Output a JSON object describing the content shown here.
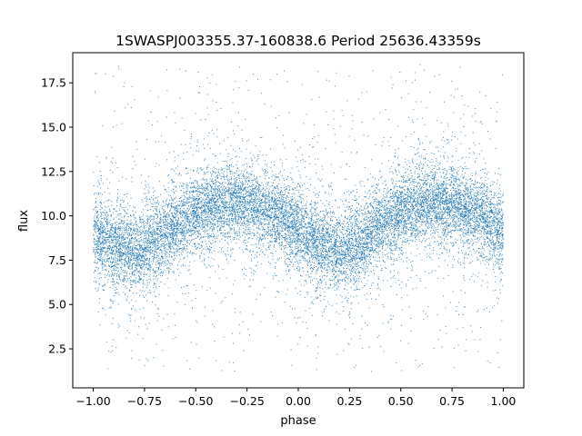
{
  "chart_data": {
    "type": "scatter",
    "title": "1SWASPJ003355.37-160838.6 Period 25636.43359s",
    "xlabel": "phase",
    "ylabel": "flux",
    "xlim": [
      -1.1,
      1.1
    ],
    "ylim": [
      0.3,
      19.2
    ],
    "xticks": [
      -1.0,
      -0.75,
      -0.5,
      -0.25,
      0.0,
      0.25,
      0.5,
      0.75,
      1.0
    ],
    "xtick_labels": [
      "−1.00",
      "−0.75",
      "−0.50",
      "−0.25",
      "0.00",
      "0.25",
      "0.50",
      "0.75",
      "1.00"
    ],
    "yticks": [
      2.5,
      5.0,
      7.5,
      10.0,
      12.5,
      15.0,
      17.5
    ],
    "ytick_labels": [
      "2.5",
      "5.0",
      "7.5",
      "10.0",
      "12.5",
      "15.0",
      "17.5"
    ],
    "grid": false,
    "marker_color": "#1f77b4",
    "series": [
      {
        "x_range": [
          -1.0,
          1.0
        ],
        "light_curve_phase": [
          -1.0,
          -0.9,
          -0.8,
          -0.7,
          -0.6,
          -0.5,
          -0.4,
          -0.3,
          -0.2,
          -0.1,
          0.0,
          0.1,
          0.2,
          0.3,
          0.4,
          0.5,
          0.6,
          0.7,
          0.8,
          0.9,
          1.0
        ],
        "light_curve_flux": [
          8.9,
          8.3,
          8.0,
          8.5,
          9.5,
          10.2,
          10.6,
          10.7,
          10.5,
          10.0,
          9.2,
          8.4,
          8.0,
          8.5,
          9.5,
          10.2,
          10.6,
          10.7,
          10.5,
          10.0,
          8.9
        ],
        "flux_range": [
          1.2,
          18.6
        ]
      }
    ]
  }
}
